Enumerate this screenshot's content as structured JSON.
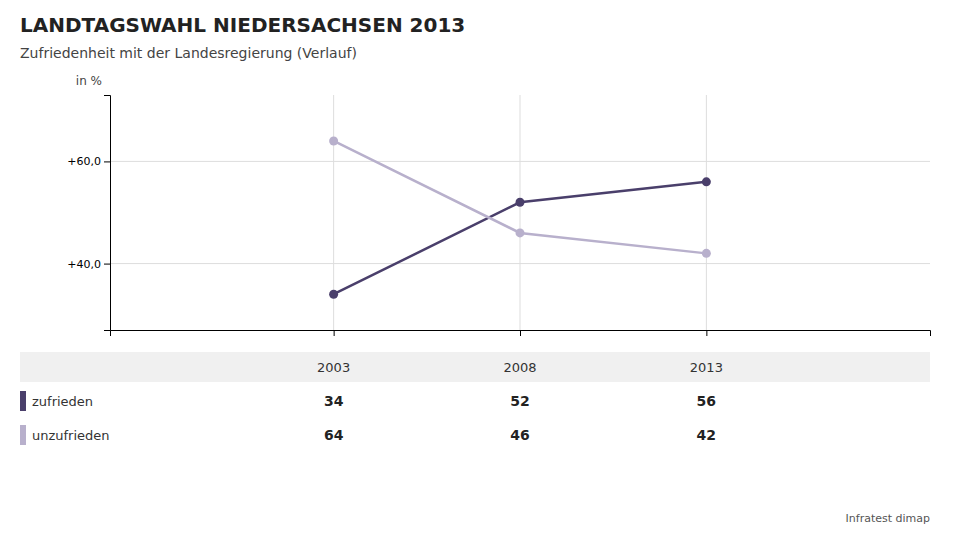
{
  "chart_data": {
    "type": "line",
    "title": "LANDTAGSWAHL NIEDERSACHSEN 2013",
    "subtitle": "Zufriedenheit mit der Landesregierung (Verlauf)",
    "ylabel": "in %",
    "annotations": [
      "Infratest dimap"
    ],
    "x": [
      2003,
      2008,
      2013
    ],
    "series": [
      {
        "name": "zufrieden",
        "color": "#4a3f6b",
        "values": [
          34,
          52,
          56
        ]
      },
      {
        "name": "unzufrieden",
        "color": "#b8b0cc",
        "values": [
          64,
          46,
          42
        ]
      }
    ],
    "xlim": [
      1997,
      2019
    ],
    "xticks": [
      2003,
      2008,
      2013
    ],
    "ylim": [
      27,
      73
    ],
    "yticks": [
      {
        "value": 40,
        "label": "+40,0"
      },
      {
        "value": 60,
        "label": "+60,0"
      }
    ],
    "grid": true,
    "marker": "circle",
    "data_labels": true,
    "tick_labels": "y"
  }
}
